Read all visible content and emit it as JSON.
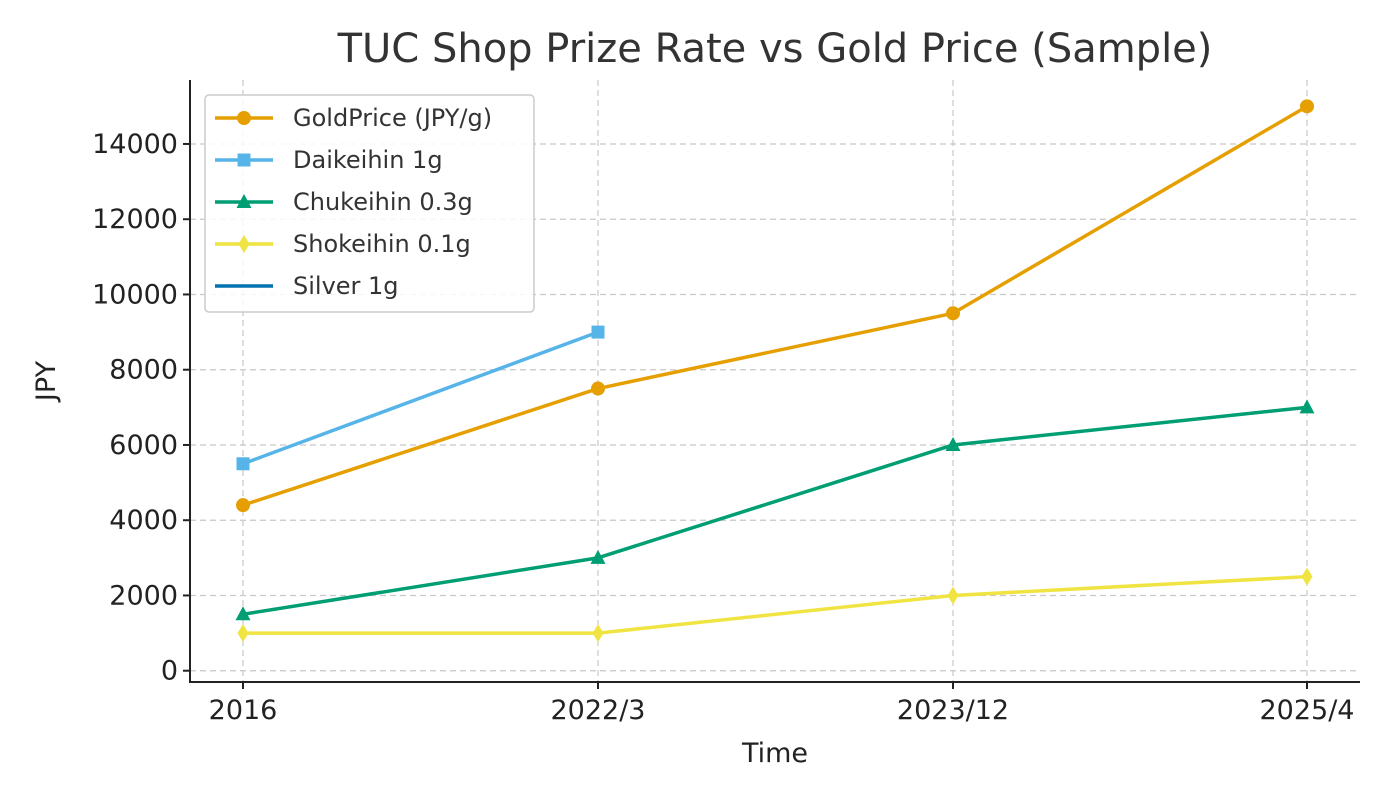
{
  "chart_data": {
    "type": "line",
    "title": "TUC Shop Prize Rate vs Gold Price (Sample)",
    "xlabel": "Time",
    "ylabel": "JPY",
    "categories": [
      "2016",
      "2022/3",
      "2023/12",
      "2025/4"
    ],
    "ylim": [
      -300,
      15700
    ],
    "yticks": [
      0,
      2000,
      4000,
      6000,
      8000,
      10000,
      12000,
      14000
    ],
    "grid": true,
    "legend_position": "top-left",
    "series": [
      {
        "name": "GoldPrice (JPY/g)",
        "color": "#E69F00",
        "marker": "circle",
        "values": [
          4400,
          7500,
          9500,
          15000
        ]
      },
      {
        "name": "Daikeihin 1g",
        "color": "#56B4E9",
        "marker": "square",
        "values": [
          5500,
          9000,
          null,
          null
        ]
      },
      {
        "name": "Chukeihin 0.3g",
        "color": "#009E73",
        "marker": "triangle",
        "values": [
          1500,
          3000,
          6000,
          7000
        ]
      },
      {
        "name": "Shokeihin 0.1g",
        "color": "#F0E442",
        "marker": "diamond",
        "values": [
          1000,
          1000,
          2000,
          2500
        ]
      },
      {
        "name": "Silver 1g",
        "color": "#0072B2",
        "marker": "none",
        "values": [
          null,
          null,
          null,
          null
        ]
      }
    ]
  }
}
